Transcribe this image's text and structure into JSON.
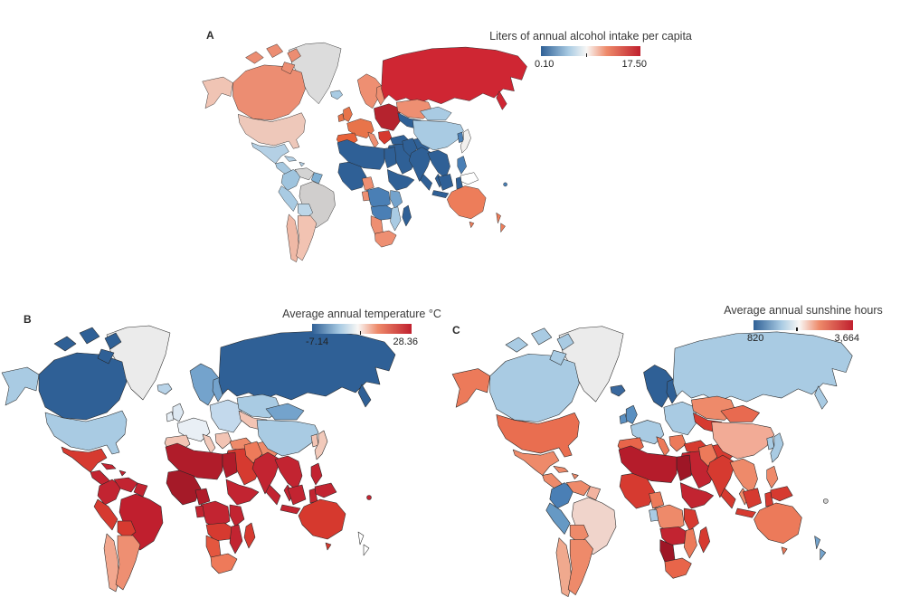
{
  "figure": {
    "background_color": "#ffffff",
    "no_data_color": "#d9d9d9"
  },
  "chart_data": [
    {
      "type": "choropleth",
      "panel_label": "A",
      "title": "Liters of annual alcohol intake per capita",
      "colorbar": {
        "min_label": "0.10",
        "max_label": "17.50",
        "min": 0.1,
        "max": 17.5,
        "gradient": [
          "#2f6096",
          "#a9cbe3",
          "#f9f7f5",
          "#ee8a6a",
          "#c0202e"
        ],
        "tick_fraction": 0.45
      },
      "legend_position": "top-right-of-map",
      "regions": {
        "greenland": "#dcdcdc",
        "iceland": "#a9cbe3",
        "alaska": "#f0c4b4",
        "canada": "#ec8d72",
        "usa": "#eec8ba",
        "mexico": "#b4d0e5",
        "central-america": "#a6c8e0",
        "caribbean": "#b4d0e5",
        "colombia": "#9fc4de",
        "venezuela": "#d3d3d3",
        "guyana": "#7fb0d4",
        "brazil": "#d0cecd",
        "peru": "#a9cbe3",
        "bolivia": "#bcd6e8",
        "chile": "#f0b9a6",
        "argentina": "#f2c3b2",
        "uk": "#e8744a",
        "ireland": "#e8744a",
        "scandinavia": "#ee8f72",
        "west-europe": "#e8744a",
        "iberia": "#e8623a",
        "italy": "#ee8f72",
        "east-europe": "#b5232e",
        "balkans": "#d6392e",
        "turkey": "#2f6096",
        "russia": "#cf2633",
        "kazakhstan": "#ee8f72",
        "central-asia": "#2f6096",
        "middle-east": "#2f6096",
        "iran": "#2f6096",
        "north-africa": "#2f6096",
        "egypt": "#2f6096",
        "west-africa": "#2f6096",
        "nigeria": "#ee8f72",
        "horn": "#2f6096",
        "central-africa": "#4a7fb5",
        "gabon": "#ee8f72",
        "east-africa": "#74a3cc",
        "angola-zambia": "#4a7fb5",
        "namibia": "#ee8f72",
        "south-africa": "#ee8f72",
        "mozambique": "#a9cbe3",
        "madagascar": "#2f6096",
        "india": "#2f6096",
        "pakistan": "#2f6096",
        "china": "#a9cbe3",
        "mongolia": "#a9cbe3",
        "korea": "#4a7fb5",
        "japan": "#f2f0ee",
        "se-asia": "#2f6096",
        "indonesia": "#2f6096",
        "philippines": "#4a7fb5",
        "png": "#ffffff",
        "australia": "#ed7d5a",
        "new-zealand": "#ed7d5a",
        "fiji": "#4a7fb5"
      }
    },
    {
      "type": "choropleth",
      "panel_label": "B",
      "title": "Average annual temperature °C",
      "colorbar": {
        "min_label": "-7.14",
        "max_label": "28.36",
        "min": -7.14,
        "max": 28.36,
        "gradient": [
          "#2f6096",
          "#a9cbe3",
          "#f9f7f5",
          "#ee8a6a",
          "#c0202e"
        ],
        "tick_fraction": 0.48
      },
      "legend_position": "top-right-of-map",
      "regions": {
        "greenland": "#ebebeb",
        "iceland": "#b8d3e8",
        "alaska": "#a9cbe3",
        "canada": "#2f6096",
        "usa": "#a9cbe3",
        "mexico": "#d63a30",
        "central-america": "#c22431",
        "caribbean": "#c22431",
        "colombia": "#c22431",
        "venezuela": "#c22431",
        "guyana": "#c22431",
        "brazil": "#c01f2e",
        "peru": "#d63a30",
        "bolivia": "#d63a30",
        "chile": "#f2a78e",
        "argentina": "#ee8f72",
        "uk": "#dde8f2",
        "ireland": "#e6eef5",
        "scandinavia": "#74a3cc",
        "west-europe": "#e9eff5",
        "iberia": "#f2c4b4",
        "italy": "#f2cabb",
        "east-europe": "#c3d9ec",
        "balkans": "#f2c4b4",
        "turkey": "#ee8a6a",
        "russia": "#2f6096",
        "kazakhstan": "#a9cbe3",
        "central-asia": "#f2c4b4",
        "middle-east": "#d63a30",
        "iran": "#ee8a6a",
        "north-africa": "#b01c2a",
        "egypt": "#b01c2a",
        "west-africa": "#a51a28",
        "nigeria": "#b01c2a",
        "horn": "#c22431",
        "central-africa": "#c22431",
        "gabon": "#c22431",
        "east-africa": "#c22431",
        "angola-zambia": "#d63a30",
        "namibia": "#e4573f",
        "south-africa": "#ee7a5a",
        "mozambique": "#c22431",
        "madagascar": "#d63a30",
        "india": "#c22431",
        "pakistan": "#ee7a5a",
        "china": "#a9cbe3",
        "mongolia": "#74a3cc",
        "korea": "#f2c4b4",
        "japan": "#f2cabb",
        "se-asia": "#c22431",
        "indonesia": "#c22431",
        "philippines": "#c22431",
        "png": "#c22431",
        "australia": "#d6392e",
        "new-zealand": "#ffffff",
        "fiji": "#c22431"
      }
    },
    {
      "type": "choropleth",
      "panel_label": "C",
      "title": "Average annual sunshine hours",
      "colorbar": {
        "min_label": "820",
        "max_label": "3,664",
        "min": 820,
        "max": 3664,
        "gradient": [
          "#2f6096",
          "#a9cbe3",
          "#f9f7f5",
          "#ee8a6a",
          "#c0202e"
        ],
        "tick_fraction": 0.43
      },
      "legend_position": "top-right-of-map",
      "regions": {
        "greenland": "#ebebeb",
        "iceland": "#39689e",
        "alaska": "#ec7a5a",
        "canada": "#a9cbe3",
        "usa": "#e96e50",
        "mexico": "#ee8a6a",
        "central-america": "#ee8a6a",
        "caribbean": "#ee8a6a",
        "colombia": "#4a7fb5",
        "venezuela": "#ee8a6a",
        "guyana": "#f2b3a0",
        "brazil": "#f0d4cb",
        "peru": "#6699c4",
        "bolivia": "#ee8a6a",
        "chile": "#f0a98e",
        "argentina": "#ee8a6a",
        "uk": "#5a8fc0",
        "ireland": "#5a8fc0",
        "scandinavia": "#2f6096",
        "west-europe": "#a9cbe3",
        "iberia": "#e8654a",
        "italy": "#ec7a5a",
        "east-europe": "#a9cbe3",
        "balkans": "#ec7a5a",
        "turkey": "#d63a30",
        "russia": "#a9cbe3",
        "kazakhstan": "#ee8a6a",
        "central-asia": "#d63a30",
        "middle-east": "#c22431",
        "iran": "#d63a30",
        "north-africa": "#b51c2b",
        "egypt": "#9e1626",
        "west-africa": "#d63a30",
        "nigeria": "#ec7a5a",
        "horn": "#c22431",
        "central-africa": "#ee8a6a",
        "gabon": "#a9cbe3",
        "east-africa": "#d63a30",
        "angola-zambia": "#c22431",
        "namibia": "#9e1626",
        "south-africa": "#e8654a",
        "mozambique": "#ec7a5a",
        "madagascar": "#d63a30",
        "india": "#d63a30",
        "pakistan": "#ec7a5a",
        "china": "#f2ab96",
        "mongolia": "#e86a50",
        "korea": "#a9cbe3",
        "japan": "#a9cbe3",
        "se-asia": "#ee8a6a",
        "indonesia": "#d63a30",
        "philippines": "#ee8a6a",
        "png": "#d63a30",
        "australia": "#ec7a5a",
        "new-zealand": "#74a3cc",
        "fiji": "#d3d3d3"
      }
    }
  ]
}
